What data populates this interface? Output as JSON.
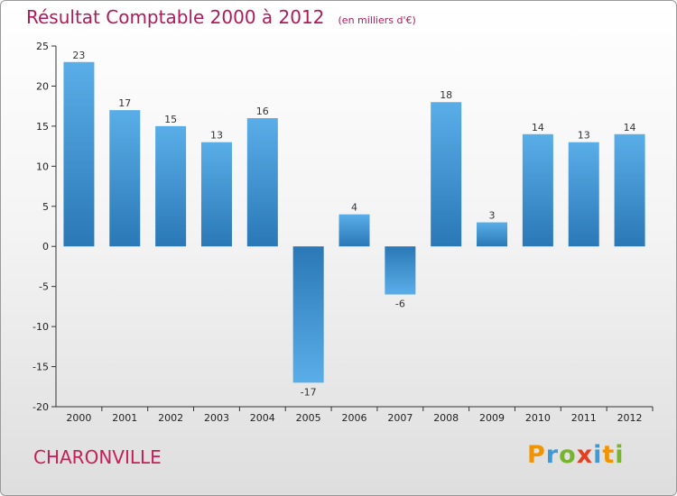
{
  "chart_data": {
    "type": "bar",
    "title": "Résultat Comptable 2000 à 2012",
    "subtitle": "(en milliers d'€)",
    "categories": [
      "2000",
      "2001",
      "2002",
      "2003",
      "2004",
      "2005",
      "2006",
      "2007",
      "2008",
      "2009",
      "2010",
      "2011",
      "2012"
    ],
    "values": [
      23,
      17,
      15,
      13,
      16,
      -17,
      4,
      -6,
      18,
      3,
      14,
      13,
      14
    ],
    "ylim": [
      -20,
      25
    ],
    "yticks": [
      25,
      20,
      15,
      10,
      5,
      0,
      -5,
      -10,
      -15,
      -20
    ],
    "xlabel": "",
    "ylabel": "",
    "grid": false,
    "colors": {
      "bar_light": "#5aaee8",
      "bar_dark": "#2a78b6",
      "axis": "#333333"
    }
  },
  "footer": {
    "city": "CHARONVILLE",
    "logo_letters": [
      {
        "ch": "P",
        "color": "#f29400"
      },
      {
        "ch": "r",
        "color": "#3c9ad6"
      },
      {
        "ch": "o",
        "color": "#78b52f"
      },
      {
        "ch": "x",
        "color": "#e43f23"
      },
      {
        "ch": "i",
        "color": "#3c9ad6"
      },
      {
        "ch": "t",
        "color": "#f29400"
      },
      {
        "ch": "i",
        "color": "#78b52f"
      }
    ]
  }
}
